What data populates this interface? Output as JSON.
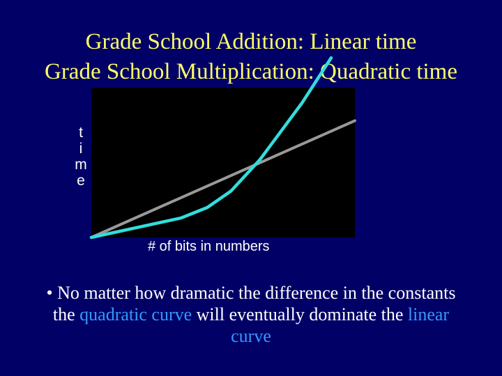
{
  "slide": {
    "title_line_1": "Grade School Addition: Linear time",
    "title_line_2": "Grade School Multiplication: Quadratic time",
    "bullet": {
      "part_1": "• No matter how dramatic the difference in the constants the ",
      "highlight_1": "quadratic curve",
      "part_2": " will eventually dominate the ",
      "highlight_2": "linear curve"
    }
  },
  "colors": {
    "background": "#000066",
    "title": "#ffff66",
    "plot_background": "#000000",
    "quadratic_curve": "#33dddd",
    "linear_curve": "#999999",
    "highlight_text": "#3399ff"
  },
  "chart_data": {
    "type": "line",
    "title": "",
    "xlabel": "# of bits in numbers",
    "ylabel_letters": [
      "t",
      "i",
      "m",
      "e"
    ],
    "grid": false,
    "legend": "none",
    "ticks": "none",
    "xlim": [
      0,
      100
    ],
    "ylim": [
      0,
      100
    ],
    "series": [
      {
        "color": "#999999",
        "x": [
          0,
          100
        ],
        "y": [
          0,
          78
        ]
      },
      {
        "color": "#33dddd",
        "x": [
          0,
          34,
          44,
          53,
          64,
          72,
          80,
          91
        ],
        "y": [
          0,
          13,
          20,
          31,
          52,
          71,
          90,
          120
        ]
      }
    ]
  }
}
